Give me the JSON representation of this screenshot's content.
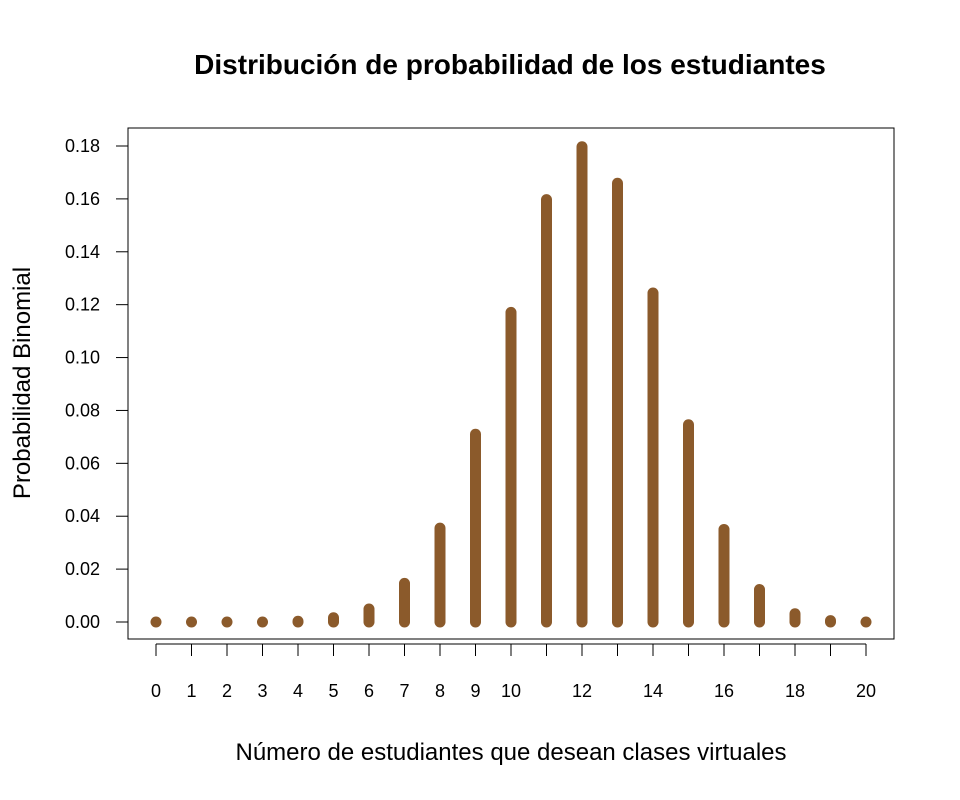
{
  "chart_data": {
    "type": "bar",
    "title": "Distribución de probabilidad de los estudiantes",
    "xlabel": "Número de estudiantes que desean clases virtuales",
    "ylabel": "Probabilidad Binomial",
    "x": [
      0,
      1,
      2,
      3,
      4,
      5,
      6,
      7,
      8,
      9,
      10,
      11,
      12,
      13,
      14,
      15,
      16,
      17,
      18,
      19,
      20
    ],
    "values": [
      0.0,
      0.0,
      0.0,
      0.0,
      0.0003,
      0.0016,
      0.0049,
      0.0146,
      0.0355,
      0.071,
      0.1171,
      0.1597,
      0.1797,
      0.1659,
      0.1244,
      0.0746,
      0.035,
      0.0123,
      0.0031,
      0.0005,
      0.0
    ],
    "x_tick_labels": [
      "0",
      "1",
      "2",
      "3",
      "4",
      "5",
      "6",
      "7",
      "8",
      "9",
      "10",
      "12",
      "14",
      "16",
      "18",
      "20"
    ],
    "y_ticks": [
      "0.00",
      "0.02",
      "0.04",
      "0.06",
      "0.08",
      "0.10",
      "0.12",
      "0.14",
      "0.16",
      "0.18"
    ],
    "ylim": [
      0.0,
      0.18
    ],
    "xlim": [
      0,
      20
    ],
    "grid": false,
    "legend": "none",
    "color": "#8B5A2B"
  }
}
